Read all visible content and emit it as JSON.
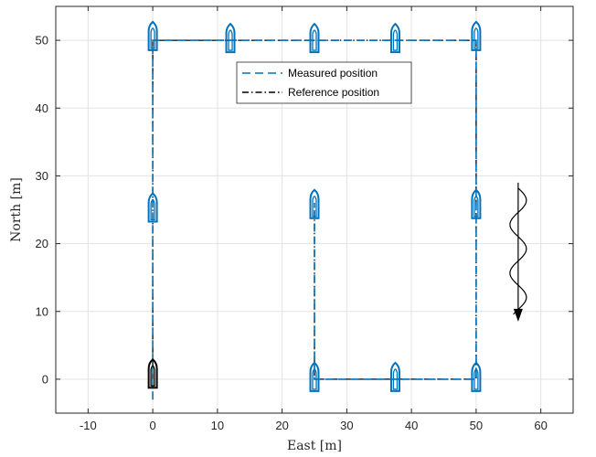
{
  "chart_data": {
    "type": "line",
    "title": "",
    "xlabel": "East [m]",
    "ylabel": "North [m]",
    "xlim": [
      -15,
      65
    ],
    "ylim": [
      -5,
      55
    ],
    "xticks": [
      -10,
      0,
      10,
      20,
      30,
      40,
      50,
      60
    ],
    "xtick_labels": [
      "-10",
      "0",
      "10",
      "20",
      "30",
      "40",
      "50",
      "60"
    ],
    "yticks": [
      0,
      10,
      20,
      30,
      40,
      50
    ],
    "ytick_labels": [
      "0",
      "10",
      "20",
      "30",
      "40",
      "50"
    ],
    "grid": true,
    "legend_position": "top-center",
    "series": [
      {
        "name": "Measured position",
        "style": "dashed",
        "color": "#0072BD",
        "x": [
          0,
          0,
          0,
          0,
          12,
          25,
          37.5,
          50,
          50,
          50,
          50,
          37.5,
          25,
          25,
          25
        ],
        "y": [
          -3,
          0,
          25,
          50,
          50,
          50,
          50,
          50,
          25,
          0,
          0,
          0,
          0,
          25,
          26
        ]
      },
      {
        "name": "Reference position",
        "style": "dash-dot",
        "color": "#000000",
        "x": [
          0,
          0,
          0,
          12,
          25,
          37.5,
          50,
          50,
          50,
          37.5,
          25,
          25
        ],
        "y": [
          0,
          25,
          50,
          50,
          50,
          50,
          50,
          25,
          0,
          0,
          0,
          26
        ]
      }
    ],
    "vessel_markers": [
      {
        "x": 0,
        "y": 0.5,
        "color": "#000000",
        "heading": "north"
      },
      {
        "x": 0,
        "y": 25,
        "color": "#0072BD",
        "heading": "north"
      },
      {
        "x": 0,
        "y": 50.3,
        "color": "#0072BD",
        "heading": "north"
      },
      {
        "x": 12,
        "y": 50,
        "color": "#0072BD",
        "heading": "north"
      },
      {
        "x": 25,
        "y": 50,
        "color": "#0072BD",
        "heading": "north"
      },
      {
        "x": 37.5,
        "y": 50,
        "color": "#0072BD",
        "heading": "north"
      },
      {
        "x": 50,
        "y": 50.3,
        "color": "#0072BD",
        "heading": "north"
      },
      {
        "x": 50,
        "y": 25.5,
        "color": "#0072BD",
        "heading": "north"
      },
      {
        "x": 50,
        "y": 0,
        "color": "#0072BD",
        "heading": "north"
      },
      {
        "x": 37.5,
        "y": 0,
        "color": "#0072BD",
        "heading": "north"
      },
      {
        "x": 25,
        "y": 0,
        "color": "#0072BD",
        "heading": "north"
      },
      {
        "x": 25,
        "y": 25.5,
        "color": "#0072BD",
        "heading": "north"
      }
    ],
    "annotation": {
      "type": "wave-direction-arrow",
      "x": 56.5,
      "y_from": 29,
      "y_to": 8.5,
      "color": "#000000"
    }
  }
}
